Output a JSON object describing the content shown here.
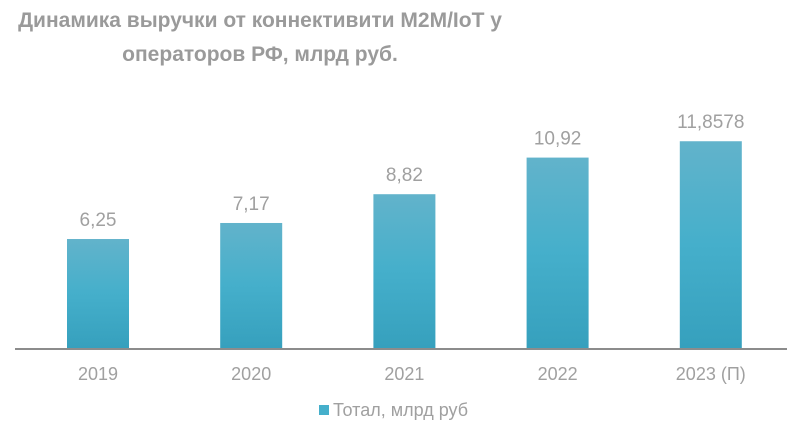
{
  "chart_data": {
    "type": "bar",
    "title_lines": [
      "Динамика выручки от коннективити M2M/IoT у",
      "операторов РФ, млрд руб."
    ],
    "categories": [
      "2019",
      "2020",
      "2021",
      "2022",
      "2023 (П)"
    ],
    "series": [
      {
        "name": "Тотал, млрд руб",
        "values": [
          6.25,
          7.17,
          8.82,
          10.92,
          11.8578
        ],
        "labels": [
          "6,25",
          "7,17",
          "8,82",
          "10,92",
          "11,8578"
        ]
      }
    ],
    "xlabel": "",
    "ylabel": "",
    "ylim": [
      0,
      15.37
    ],
    "grid": false,
    "legend_position": "bottom",
    "colors": {
      "bar_top": "#62b3cb",
      "bar_mid": "#45afcb",
      "bar_bottom": "#36a0bd",
      "text": "#9a9a9a",
      "axis": "#8c8c8c"
    }
  }
}
